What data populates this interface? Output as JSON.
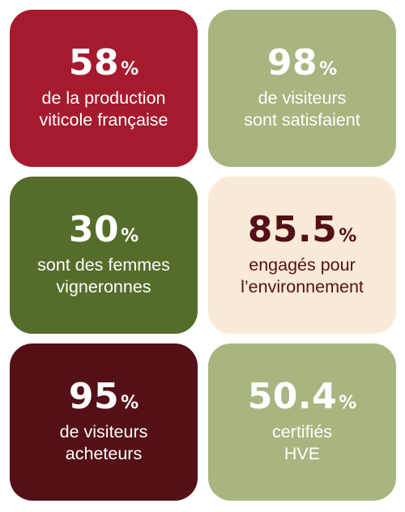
{
  "colors": {
    "red": "#A51A2C",
    "sage": "#A7B680",
    "olive": "#566C2B",
    "cream": "#FCEAD8",
    "burgundy": "#541016",
    "dark_text": "#541016",
    "light_text": "#ffffff"
  },
  "cards": [
    {
      "value": "58",
      "unit": "%",
      "line1": "de la production",
      "line2": "viticole française"
    },
    {
      "value": "98",
      "unit": "%",
      "line1": "de visiteurs",
      "line2": "sont satisfaient"
    },
    {
      "value": "30",
      "unit": "%",
      "line1": "sont des femmes",
      "line2": "vigneronnes"
    },
    {
      "value": "85.5",
      "unit": "%",
      "line1": "engagés pour",
      "line2": "l’environnement"
    },
    {
      "value": "95",
      "unit": "%",
      "line1": "de visiteurs",
      "line2": "acheteurs"
    },
    {
      "value": "50.4",
      "unit": "%",
      "line1": "certifiés",
      "line2": "HVE"
    }
  ]
}
